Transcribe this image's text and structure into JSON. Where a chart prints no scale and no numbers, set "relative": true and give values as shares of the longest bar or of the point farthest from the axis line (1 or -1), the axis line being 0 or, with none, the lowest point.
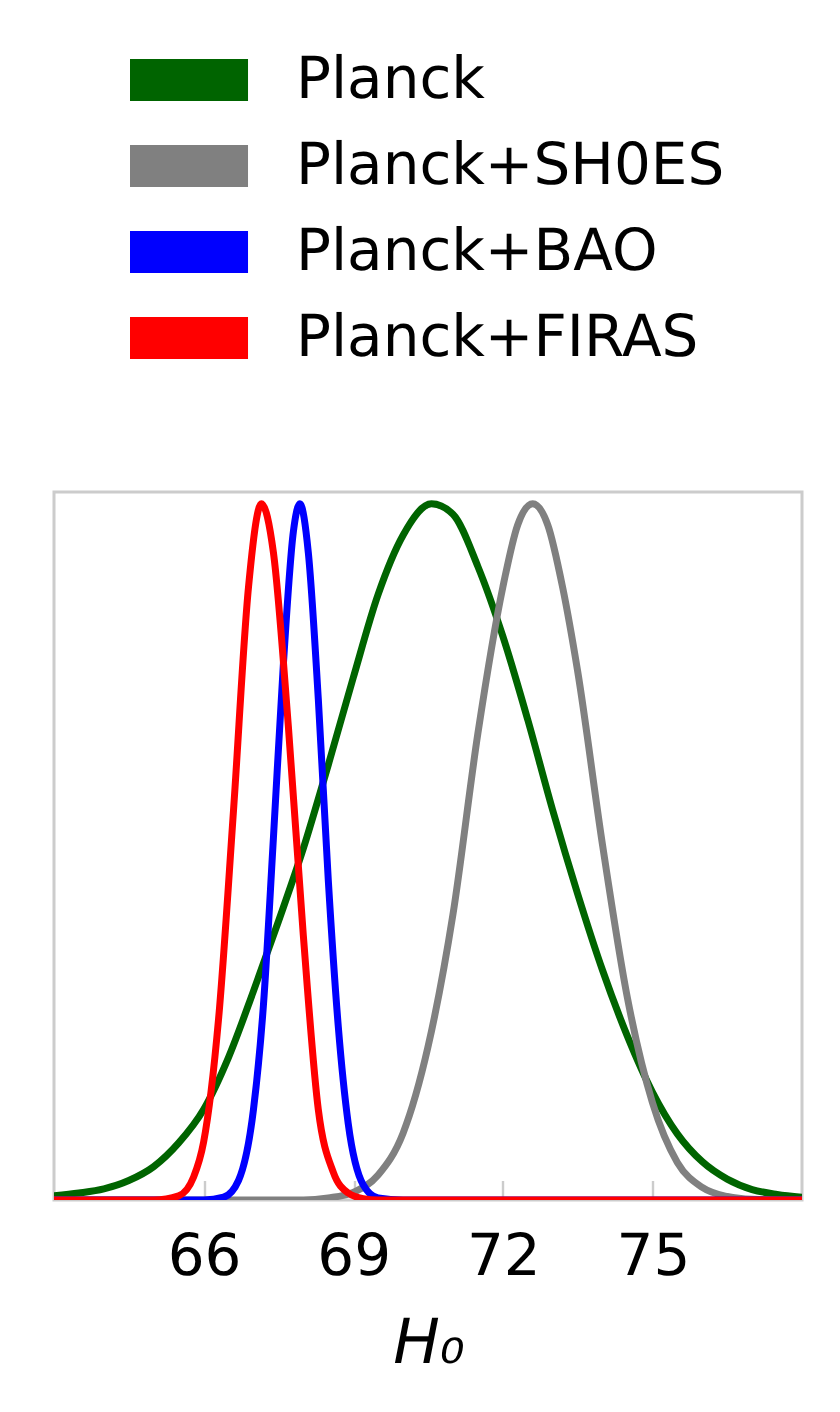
{
  "chart_data": {
    "type": "line",
    "xlabel": "H₀",
    "xlim": [
      63,
      78
    ],
    "xticks": [
      66,
      69,
      72,
      75
    ],
    "relative": true,
    "legend": "top",
    "series": [
      {
        "name": "Planck",
        "color": "#006400",
        "x": [
          63,
          63.5,
          64,
          64.5,
          65,
          65.5,
          66,
          66.5,
          67,
          67.5,
          68,
          68.5,
          69,
          69.5,
          70,
          70.57,
          71,
          71.5,
          72,
          72.5,
          73,
          73.5,
          74,
          74.5,
          75,
          75.5,
          76,
          76.5,
          77,
          77.5,
          78
        ],
        "values": [
          0.006,
          0.01,
          0.016,
          0.028,
          0.048,
          0.082,
          0.13,
          0.205,
          0.3,
          0.4,
          0.505,
          0.625,
          0.75,
          0.87,
          0.955,
          1,
          0.985,
          0.91,
          0.81,
          0.69,
          0.56,
          0.44,
          0.33,
          0.235,
          0.155,
          0.095,
          0.055,
          0.03,
          0.015,
          0.008,
          0.004
        ]
      },
      {
        "name": "Planck+SH0ES",
        "color": "#808080",
        "x": [
          63,
          68,
          68.5,
          69,
          69.5,
          70,
          70.5,
          71,
          71.5,
          72,
          72.3,
          72.6,
          72.9,
          73.2,
          73.5,
          74,
          74.5,
          75,
          75.5,
          76,
          76.5,
          77,
          78
        ],
        "values": [
          0,
          0,
          0.003,
          0.011,
          0.036,
          0.096,
          0.22,
          0.41,
          0.67,
          0.88,
          0.97,
          1,
          0.97,
          0.88,
          0.76,
          0.51,
          0.29,
          0.14,
          0.054,
          0.018,
          0.005,
          0.001,
          0
        ]
      },
      {
        "name": "Planck+BAO",
        "color": "#0000ff",
        "x": [
          63,
          65.5,
          66,
          66.4,
          66.7,
          67,
          67.2,
          67.4,
          67.6,
          67.8,
          67.93,
          68.1,
          68.3,
          68.5,
          68.7,
          68.9,
          69.2,
          69.5,
          70,
          78
        ],
        "values": [
          0,
          0,
          0,
          0.004,
          0.028,
          0.13,
          0.28,
          0.52,
          0.77,
          0.96,
          1,
          0.93,
          0.72,
          0.46,
          0.25,
          0.11,
          0.022,
          0.003,
          0,
          0
        ]
      },
      {
        "name": "Planck+FIRAS",
        "color": "#ff0000",
        "x": [
          63,
          65,
          65.5,
          65.8,
          66,
          66.3,
          66.6,
          66.9,
          67.16,
          67.4,
          67.7,
          68,
          68.3,
          68.6,
          68.9,
          69.2,
          69.5,
          78
        ],
        "values": [
          0,
          0,
          0.006,
          0.033,
          0.083,
          0.26,
          0.56,
          0.88,
          1,
          0.93,
          0.68,
          0.38,
          0.13,
          0.04,
          0.01,
          0.002,
          0,
          0
        ]
      }
    ]
  }
}
